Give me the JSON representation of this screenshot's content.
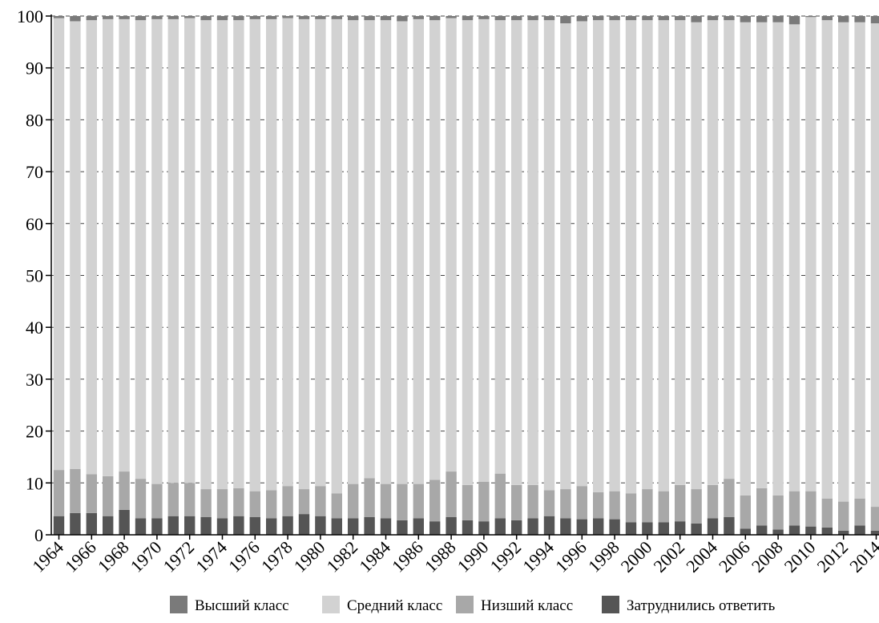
{
  "chart_data": {
    "type": "bar",
    "stacked": true,
    "categories": [
      "1964",
      "1965",
      "1966",
      "1967",
      "1968",
      "1969",
      "1970",
      "1971",
      "1972",
      "1973",
      "1974",
      "1975",
      "1976",
      "1977",
      "1978",
      "1979",
      "1980",
      "1981",
      "1982",
      "1983",
      "1984",
      "1985",
      "1986",
      "1987",
      "1988",
      "1989",
      "1990",
      "1991",
      "1992",
      "1993",
      "1994",
      "1995",
      "1996",
      "1997",
      "1998",
      "1999",
      "2000",
      "2001",
      "2002",
      "2003",
      "2004",
      "2005",
      "2006",
      "2007",
      "2008",
      "2009",
      "2010",
      "2011",
      "2012",
      "2013",
      "2014"
    ],
    "x_tick_labels": [
      "1964",
      "1966",
      "1968",
      "1970",
      "1972",
      "1974",
      "1976",
      "1978",
      "1980",
      "1982",
      "1984",
      "1986",
      "1988",
      "1990",
      "1992",
      "1994",
      "1996",
      "1998",
      "2000",
      "2002",
      "2004",
      "2006",
      "2008",
      "2010",
      "2012",
      "2014"
    ],
    "series": [
      {
        "name": "Затруднились ответить",
        "color": "#555555",
        "values": [
          3.6,
          4.2,
          4.2,
          3.6,
          4.8,
          3.2,
          3.2,
          3.6,
          3.6,
          3.4,
          3.2,
          3.6,
          3.4,
          3.2,
          3.6,
          4.0,
          3.6,
          3.2,
          3.2,
          3.4,
          3.2,
          2.8,
          3.2,
          2.6,
          3.4,
          2.8,
          2.6,
          3.2,
          2.8,
          3.2,
          3.6,
          3.2,
          3.0,
          3.2,
          3.0,
          2.4,
          2.4,
          2.4,
          2.6,
          2.2,
          3.2,
          3.4,
          1.2,
          1.8,
          1.0,
          1.8,
          1.6,
          1.4,
          0.8,
          1.8,
          0.8
        ]
      },
      {
        "name": "Низший класс",
        "color": "#a8a8a8",
        "values": [
          8.9,
          8.5,
          7.5,
          7.7,
          7.4,
          7.6,
          6.6,
          6.4,
          6.4,
          5.4,
          5.6,
          5.4,
          5.0,
          5.4,
          5.8,
          4.8,
          5.8,
          4.8,
          6.6,
          7.5,
          6.6,
          7.0,
          6.6,
          8.0,
          8.8,
          6.8,
          7.6,
          8.6,
          6.8,
          6.4,
          5.0,
          5.6,
          6.4,
          5.0,
          5.4,
          5.6,
          6.4,
          6.0,
          7.0,
          6.6,
          6.4,
          7.4,
          6.4,
          7.2,
          6.6,
          6.6,
          6.8,
          5.6,
          5.6,
          5.2,
          4.6
        ]
      },
      {
        "name": "Средний класс",
        "color": "#d2d2d2",
        "values": [
          87.1,
          86.3,
          87.5,
          88.1,
          87.2,
          88.4,
          89.6,
          89.4,
          89.6,
          90.4,
          90.4,
          90.2,
          91.0,
          90.8,
          90.2,
          90.6,
          90.0,
          91.4,
          89.4,
          88.3,
          89.4,
          89.2,
          89.6,
          88.6,
          87.4,
          89.6,
          89.2,
          87.4,
          89.6,
          89.6,
          90.6,
          89.8,
          89.6,
          91.0,
          90.8,
          91.2,
          90.4,
          90.8,
          89.6,
          90.0,
          89.6,
          88.4,
          91.2,
          89.8,
          91.2,
          90.0,
          91.4,
          92.2,
          92.4,
          91.8,
          93.2
        ]
      },
      {
        "name": "Высший класс",
        "color": "#7a7a7a",
        "values": [
          0.4,
          1.0,
          0.8,
          0.6,
          0.6,
          0.8,
          0.6,
          0.6,
          0.4,
          0.8,
          0.8,
          0.8,
          0.6,
          0.6,
          0.4,
          0.6,
          0.6,
          0.6,
          0.8,
          0.8,
          0.8,
          1.0,
          0.6,
          0.8,
          0.4,
          0.8,
          0.6,
          0.8,
          0.8,
          0.8,
          0.8,
          1.4,
          1.0,
          0.8,
          0.8,
          0.8,
          0.8,
          0.8,
          0.8,
          1.2,
          0.8,
          0.8,
          1.2,
          1.2,
          1.2,
          1.6,
          0.2,
          0.8,
          1.2,
          1.2,
          1.4
        ]
      }
    ],
    "legend_order": [
      "Высший класс",
      "Средний класс",
      "Низший класс",
      "Затруднились ответить"
    ],
    "legend_position": "bottom",
    "ylim": [
      0,
      100
    ],
    "y_ticks": [
      "0",
      "10",
      "20",
      "30",
      "40",
      "50",
      "60",
      "70",
      "80",
      "90",
      "100"
    ],
    "grid": "horizontal dashed",
    "title": "",
    "xlabel": "",
    "ylabel": ""
  }
}
